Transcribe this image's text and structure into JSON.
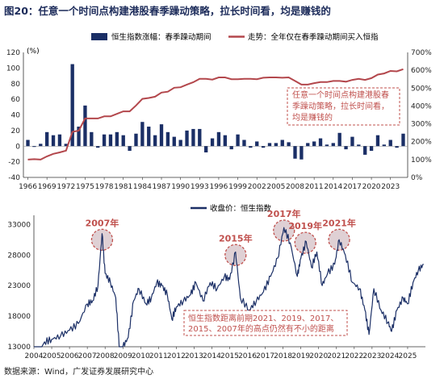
{
  "title": "图20：任意一个时间点构建港股春季躁动策略，拉长时间看，均是赚钱的",
  "source": "数据来源：Wind，广发证券发展研究中心",
  "colors": {
    "bar": "#1b2f66",
    "line1": "#b3474c",
    "line2": "#1b2f66",
    "callout_border": "#c0504d",
    "callout_text": "#c0504d",
    "circle_fill": "#d9c8cc",
    "circle_stroke": "#c0504d",
    "title": "#1c2b5a"
  },
  "chart_data": [
    {
      "type": "bar+line",
      "left_unit_label": "(%)",
      "y_left_ticks": [
        "120",
        "100",
        "80",
        "60",
        "40",
        "20",
        "0",
        "-20",
        "-40"
      ],
      "y_right_ticks": [
        "700%",
        "600%",
        "500%",
        "400%",
        "300%",
        "200%",
        "100%",
        "0%"
      ],
      "ylim_left": [
        -40,
        120
      ],
      "ylim_right": [
        0,
        700
      ],
      "x_ticks": [
        "1966",
        "1969",
        "1972",
        "1975",
        "1978",
        "1981",
        "1984",
        "1987",
        "1990",
        "1993",
        "1996",
        "1999",
        "2002",
        "2005",
        "2008",
        "2011",
        "2014",
        "2017",
        "2020",
        "2023"
      ],
      "legend": [
        "恒生指数涨幅：春季躁动期间",
        "走势：全年仅在春季躁动期间买入恒指"
      ],
      "legend_position": "top",
      "annotation": "任意一个时间点构建港股春季躁动策略，拉长时间看，均是赚钱的",
      "annotation_lines": [
        "任意一个时间点构建港股春",
        "季躁动策略，拉长时间看，",
        "均是赚钱的"
      ],
      "bar_series": {
        "name": "恒生指数涨幅：春季躁动期间",
        "years": [
          1966,
          1967,
          1968,
          1969,
          1970,
          1971,
          1972,
          1973,
          1974,
          1975,
          1976,
          1977,
          1978,
          1979,
          1980,
          1981,
          1982,
          1983,
          1984,
          1985,
          1986,
          1987,
          1988,
          1989,
          1990,
          1991,
          1992,
          1993,
          1994,
          1995,
          1996,
          1997,
          1998,
          1999,
          2000,
          2001,
          2002,
          2003,
          2004,
          2005,
          2006,
          2007,
          2008,
          2009,
          2010,
          2011,
          2012,
          2013,
          2014,
          2015,
          2016,
          2017,
          2018,
          2019,
          2020,
          2021,
          2022,
          2023,
          2024,
          2025
        ],
        "values": [
          8,
          -1,
          3,
          18,
          14,
          15,
          3,
          105,
          25,
          52,
          18,
          -2,
          15,
          15,
          18,
          14,
          -6,
          16,
          31,
          25,
          14,
          28,
          18,
          12,
          8,
          20,
          22,
          22,
          -8,
          10,
          18,
          14,
          -4,
          15,
          8,
          -2,
          6,
          -2,
          4,
          4,
          8,
          5,
          -16,
          -17,
          4,
          6,
          10,
          2,
          4,
          17,
          -4,
          12,
          2,
          -11,
          -6,
          14,
          2,
          8,
          -2,
          16
        ]
      },
      "line_series": {
        "name": "走势：全年仅在春季躁动期间买入恒指",
        "years": [
          1966,
          1967,
          1968,
          1969,
          1970,
          1971,
          1972,
          1973,
          1974,
          1975,
          1976,
          1977,
          1978,
          1979,
          1980,
          1981,
          1982,
          1983,
          1984,
          1985,
          1986,
          1987,
          1988,
          1989,
          1990,
          1991,
          1992,
          1993,
          1994,
          1995,
          1996,
          1997,
          1998,
          1999,
          2000,
          2001,
          2002,
          2003,
          2004,
          2005,
          2006,
          2007,
          2008,
          2009,
          2010,
          2011,
          2012,
          2013,
          2014,
          2015,
          2016,
          2017,
          2018,
          2019,
          2020,
          2021,
          2022,
          2023,
          2024,
          2025
        ],
        "values": [
          100,
          102,
          100,
          118,
          132,
          140,
          150,
          255,
          262,
          330,
          330,
          330,
          342,
          342,
          356,
          370,
          370,
          403,
          440,
          445,
          452,
          475,
          480,
          502,
          505,
          520,
          533,
          552,
          552,
          548,
          560,
          560,
          550,
          550,
          552,
          552,
          550,
          558,
          560,
          560,
          558,
          560,
          540,
          520,
          520,
          528,
          534,
          534,
          540,
          540,
          536,
          546,
          552,
          546,
          556,
          576,
          582,
          596,
          594,
          606
        ]
      }
    },
    {
      "type": "line",
      "legend": [
        "收盘价：恒生指数"
      ],
      "legend_position": "top",
      "y_ticks": [
        "33000",
        "28000",
        "23000",
        "18000",
        "13000"
      ],
      "ylim": [
        13000,
        34500
      ],
      "x_ticks": [
        "2004",
        "2005",
        "2006",
        "2007",
        "2008",
        "2009",
        "2010",
        "2011",
        "2012",
        "2013",
        "2014",
        "2015",
        "2016",
        "2017",
        "2018",
        "2019",
        "2020",
        "2021",
        "2022",
        "2023",
        "2024",
        "2025"
      ],
      "xlim": [
        2004,
        2026
      ],
      "highlights": [
        {
          "label": "2007年",
          "x": 2007.83,
          "y": 30500
        },
        {
          "label": "2015年",
          "x": 2015.33,
          "y": 28000
        },
        {
          "label": "2017年",
          "x": 2018.05,
          "y": 32000
        },
        {
          "label": "2019年",
          "x": 2019.25,
          "y": 30000
        },
        {
          "label": "2021年",
          "x": 2021.15,
          "y": 30500
        }
      ],
      "annotation_lines": [
        "恒生指数距离前期2021、2019、2017、",
        "2015、2007年的高点仍然有不小的距离"
      ],
      "series": [
        {
          "name": "收盘价：恒生指数",
          "x": [
            2004.0,
            2004.3,
            2004.6,
            2005.0,
            2005.5,
            2006.0,
            2006.5,
            2007.0,
            2007.3,
            2007.6,
            2007.83,
            2008.0,
            2008.3,
            2008.6,
            2008.83,
            2009.0,
            2009.3,
            2009.6,
            2009.9,
            2010.3,
            2010.6,
            2010.9,
            2011.2,
            2011.5,
            2011.75,
            2012.0,
            2012.4,
            2012.8,
            2013.1,
            2013.5,
            2013.9,
            2014.3,
            2014.7,
            2015.0,
            2015.33,
            2015.6,
            2016.1,
            2016.5,
            2016.9,
            2017.3,
            2017.7,
            2018.05,
            2018.4,
            2018.8,
            2019.0,
            2019.3,
            2019.6,
            2019.9,
            2020.2,
            2020.5,
            2020.9,
            2021.15,
            2021.5,
            2021.9,
            2022.3,
            2022.6,
            2022.83,
            2023.1,
            2023.5,
            2023.9,
            2024.1,
            2024.4,
            2024.75,
            2025.0,
            2025.3,
            2025.6,
            2025.9
          ],
          "y": [
            13000,
            12000,
            13800,
            14200,
            14800,
            15700,
            16800,
            20000,
            20500,
            23000,
            31500,
            25000,
            23500,
            21000,
            11500,
            13000,
            14500,
            20500,
            22500,
            20000,
            21000,
            23500,
            23000,
            21500,
            17500,
            19500,
            20500,
            21500,
            23500,
            20500,
            23500,
            22500,
            24500,
            24000,
            28500,
            21000,
            19000,
            20500,
            22000,
            24500,
            27500,
            32500,
            30000,
            24500,
            27500,
            30200,
            26000,
            28500,
            23000,
            25000,
            26500,
            30500,
            28000,
            23500,
            22500,
            19000,
            15000,
            22500,
            19000,
            17000,
            15500,
            19000,
            21000,
            20000,
            23500,
            25500,
            26500
          ]
        }
      ]
    }
  ]
}
